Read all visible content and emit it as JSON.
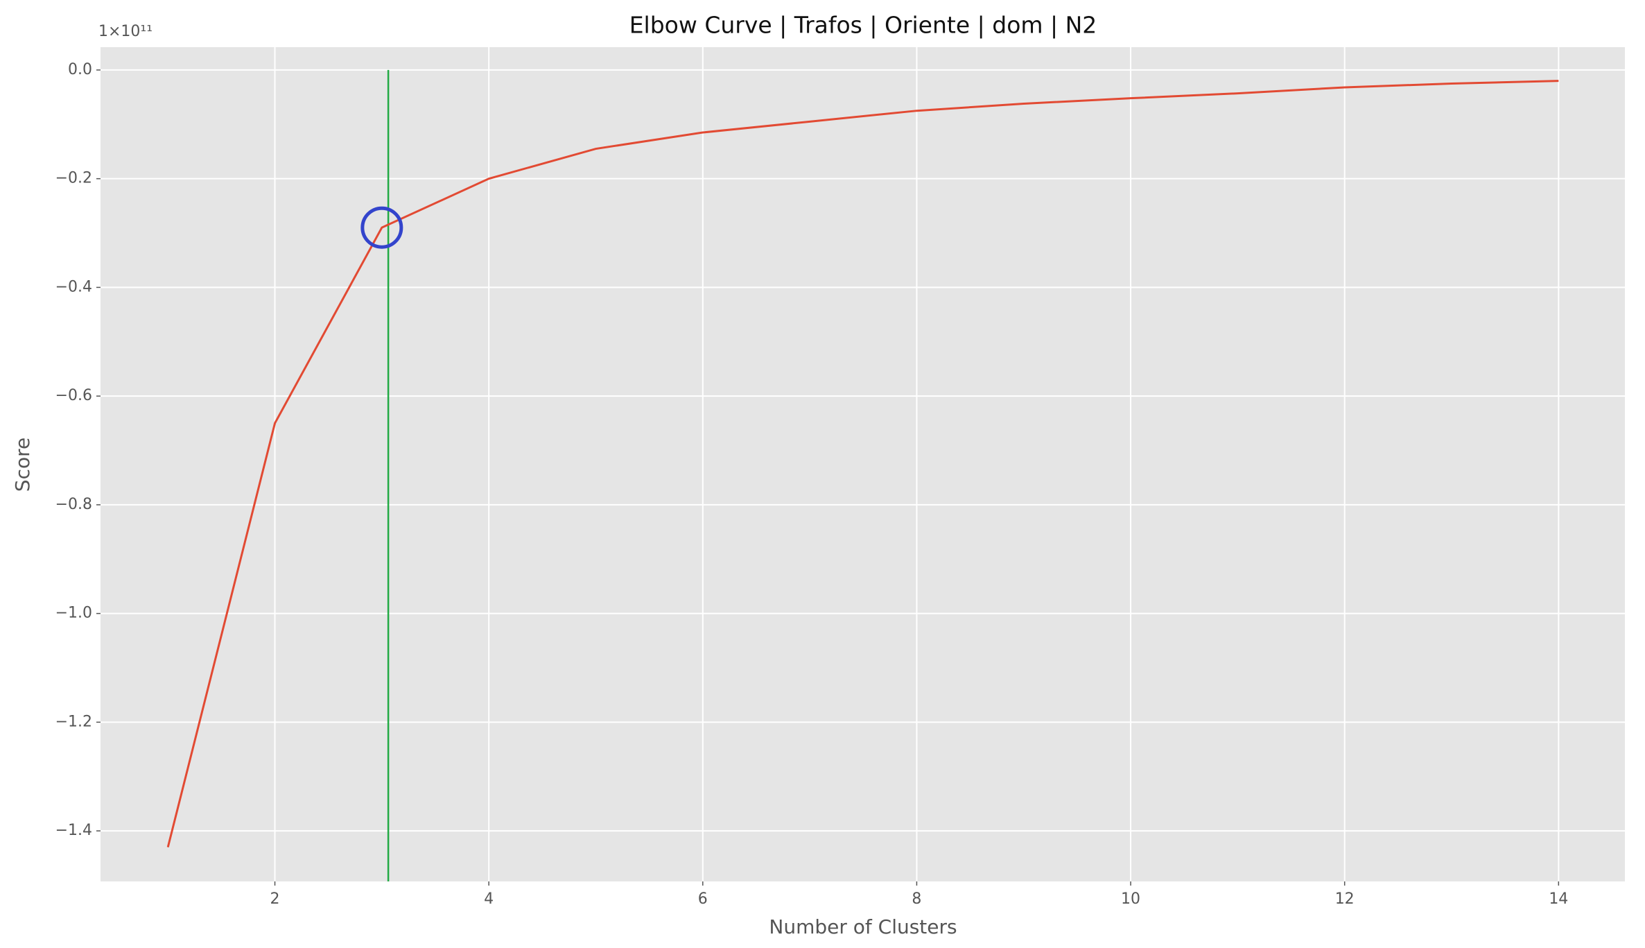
{
  "chart_data": {
    "type": "line",
    "title": "Elbow Curve | Trafos | Oriente | dom | N2",
    "x_label": "Number of Clusters",
    "y_label": "Score",
    "y_offset_label": "1×10¹¹",
    "x": [
      1,
      2,
      3,
      4,
      5,
      6,
      7,
      8,
      9,
      10,
      11,
      12,
      13,
      14
    ],
    "series": [
      {
        "name": "Score",
        "color": "#e24a33",
        "values": [
          -1.43,
          -0.65,
          -0.29,
          -0.2,
          -0.145,
          -0.115,
          -0.095,
          -0.075,
          -0.062,
          -0.052,
          -0.043,
          -0.032,
          -0.025,
          -0.02
        ]
      }
    ],
    "xlim": [
      0.37,
      14.62
    ],
    "ylim": [
      -1.493,
      0.042
    ],
    "xticks": [
      2,
      4,
      6,
      8,
      10,
      12,
      14
    ],
    "yticks": [
      {
        "value": 0,
        "label": "0.0"
      },
      {
        "value": -0.2,
        "label": "−0.2"
      },
      {
        "value": -0.4,
        "label": "−0.4"
      },
      {
        "value": -0.6,
        "label": "−0.6"
      },
      {
        "value": -0.8,
        "label": "−0.8"
      },
      {
        "value": -1.0,
        "label": "−1.0"
      },
      {
        "value": -1.2,
        "label": "−1.2"
      },
      {
        "value": -1.4,
        "label": "−1.4"
      }
    ],
    "grid": true,
    "vline": {
      "x": 3.06,
      "color": "#22aa44"
    },
    "highlight": {
      "x": 3,
      "y": -0.29,
      "color": "#3344cc"
    }
  }
}
